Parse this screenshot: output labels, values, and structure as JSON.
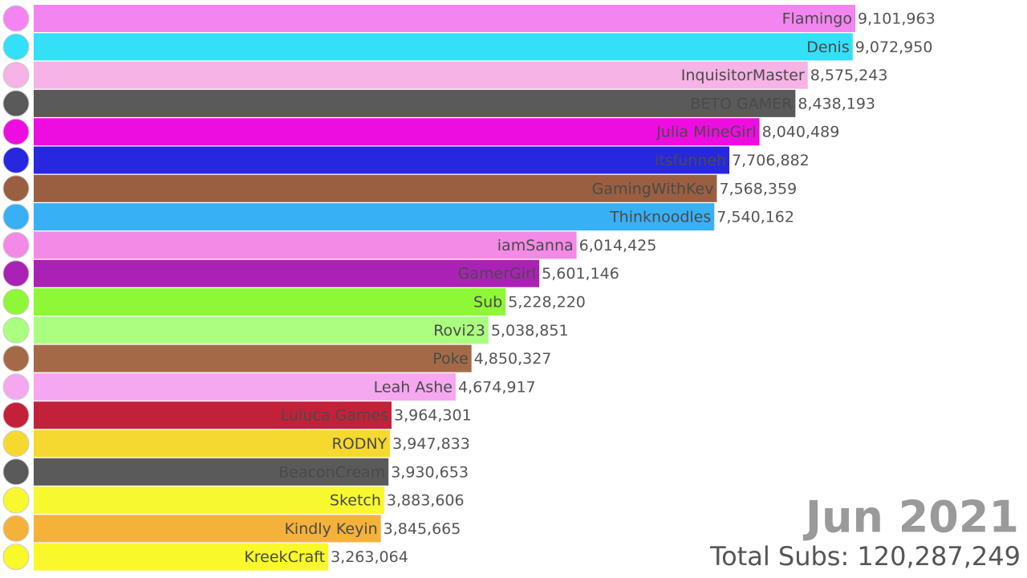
{
  "chart_data": {
    "type": "bar",
    "orientation": "horizontal",
    "date_label": "Jun 2021",
    "total_label": "Total Subs: 120,287,249",
    "categories": [
      "Flamingo",
      "Denis",
      "InquisitorMaster",
      "BETO GAMER",
      "Julia MineGirl",
      "itsfunneh",
      "GamingWithKev",
      "Thinknoodles",
      "iamSanna",
      "GamerGirl",
      "Sub",
      "Rovi23",
      "Poke",
      "Leah Ashe",
      "Luluca Games",
      "RODNY",
      "BeaconCream",
      "Sketch",
      "Kindly Keyin",
      "KreekCraft"
    ],
    "values": [
      9101963,
      9072950,
      8575243,
      8438193,
      8040489,
      7706882,
      7568359,
      7540162,
      6014425,
      5601146,
      5228220,
      5038851,
      4850327,
      4674917,
      3964301,
      3947833,
      3930653,
      3883606,
      3845665,
      3263064
    ],
    "value_labels": [
      "9,101,963",
      "9,072,950",
      "8,575,243",
      "8,438,193",
      "8,040,489",
      "7,706,882",
      "7,568,359",
      "7,540,162",
      "6,014,425",
      "5,601,146",
      "5,228,220",
      "5,038,851",
      "4,850,327",
      "4,674,917",
      "3,964,301",
      "3,947,833",
      "3,930,653",
      "3,883,606",
      "3,845,665",
      "3,263,064"
    ],
    "colors": [
      "#f385f0",
      "#33e0f8",
      "#f5b3e6",
      "#5a5a5a",
      "#ee0de0",
      "#2727e0",
      "#9a5f40",
      "#38b0f5",
      "#f38ae6",
      "#aa22b5",
      "#8ef738",
      "#aaff80",
      "#a46a48",
      "#f5a8f0",
      "#c3213a",
      "#f5d930",
      "#5a5a5a",
      "#f8f830",
      "#f5b23a",
      "#f8f82a"
    ],
    "xlim": [
      0,
      9101963
    ]
  }
}
